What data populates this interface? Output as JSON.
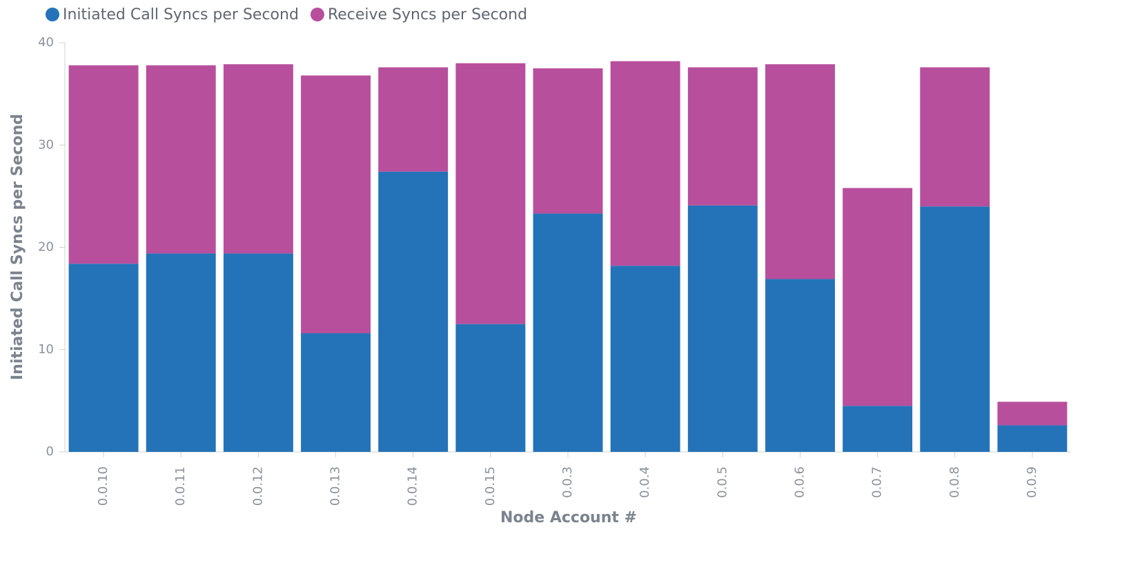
{
  "chart_data": {
    "type": "stacked_bar",
    "x_label": "Node Account #",
    "y_label": "Initiated Call Syncs per Second",
    "categories": [
      "0.0.10",
      "0.0.11",
      "0.0.12",
      "0.0.13",
      "0.0.14",
      "0.0.15",
      "0.0.3",
      "0.0.4",
      "0.0.5",
      "0.0.6",
      "0.0.7",
      "0.0.8",
      "0.0.9"
    ],
    "series": [
      {
        "name": "Initiated Call Syncs per Second",
        "color": "#2473b8",
        "values": [
          18.4,
          19.4,
          19.4,
          11.6,
          27.4,
          12.5,
          23.3,
          18.2,
          24.1,
          16.9,
          4.5,
          24.0,
          2.6
        ]
      },
      {
        "name": "Receive Syncs per Second",
        "color": "#b84f9d",
        "values": [
          19.4,
          18.4,
          18.5,
          25.2,
          10.2,
          25.5,
          14.2,
          20.0,
          13.5,
          21.0,
          21.3,
          13.6,
          2.3
        ]
      }
    ],
    "ylim": [
      0,
      40
    ],
    "yticks": [
      0,
      10,
      20,
      30,
      40
    ],
    "legend": "top-left"
  }
}
